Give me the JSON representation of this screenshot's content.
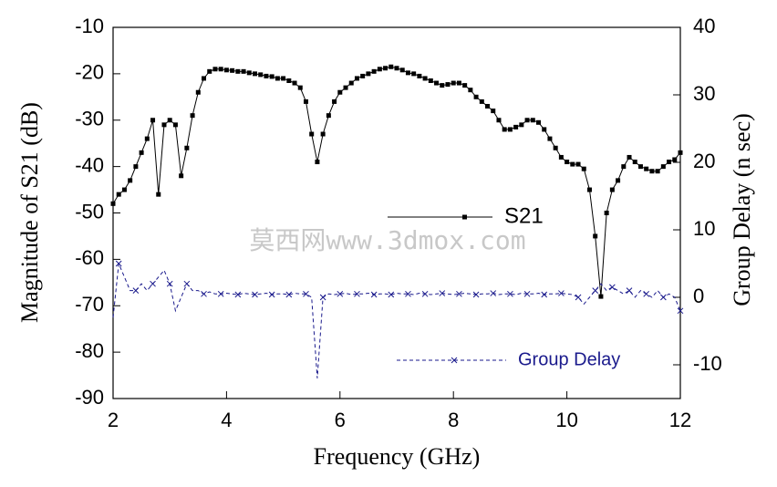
{
  "chart_data": {
    "type": "line",
    "x_label": "Frequency (GHz)",
    "y_label": "Magnitude of S21 (dB)",
    "y2_label": "Group Delay (n sec)",
    "annotation": "莫西网www.3dmox.com",
    "xlim": [
      2,
      12
    ],
    "xticks": [
      2,
      4,
      6,
      8,
      10,
      12
    ],
    "ylim": [
      -90,
      -10
    ],
    "yticks": [
      -90,
      -80,
      -70,
      -60,
      -50,
      -40,
      -30,
      -20,
      -10
    ],
    "y2lim": [
      -15,
      40
    ],
    "y2ticks": [
      -10,
      0,
      10,
      20,
      30,
      40
    ],
    "x": [
      2.0,
      2.1,
      2.2,
      2.3,
      2.4,
      2.5,
      2.6,
      2.7,
      2.8,
      2.9,
      3.0,
      3.1,
      3.2,
      3.3,
      3.4,
      3.5,
      3.6,
      3.7,
      3.8,
      3.9,
      4.0,
      4.1,
      4.2,
      4.3,
      4.4,
      4.5,
      4.6,
      4.7,
      4.8,
      4.9,
      5.0,
      5.1,
      5.2,
      5.3,
      5.4,
      5.5,
      5.6,
      5.7,
      5.8,
      5.9,
      6.0,
      6.1,
      6.2,
      6.3,
      6.4,
      6.5,
      6.6,
      6.7,
      6.8,
      6.9,
      7.0,
      7.1,
      7.2,
      7.3,
      7.4,
      7.5,
      7.6,
      7.7,
      7.8,
      7.9,
      8.0,
      8.1,
      8.2,
      8.3,
      8.4,
      8.5,
      8.6,
      8.7,
      8.8,
      8.9,
      9.0,
      9.1,
      9.2,
      9.3,
      9.4,
      9.5,
      9.6,
      9.7,
      9.8,
      9.9,
      10.0,
      10.1,
      10.2,
      10.3,
      10.4,
      10.5,
      10.6,
      10.7,
      10.8,
      10.9,
      11.0,
      11.1,
      11.2,
      11.3,
      11.4,
      11.5,
      11.6,
      11.7,
      11.8,
      11.9,
      12.0
    ],
    "series": [
      {
        "name": "S21",
        "color": "#000000",
        "marker": "square",
        "values": [
          -48,
          -46,
          -45,
          -43,
          -40,
          -37,
          -34,
          -30,
          -46,
          -31,
          -30,
          -31,
          -42,
          -36,
          -29,
          -24,
          -21,
          -19.5,
          -19,
          -19,
          -19.2,
          -19.3,
          -19.5,
          -19.5,
          -19.8,
          -20,
          -20.2,
          -20.5,
          -20.6,
          -21,
          -21,
          -21.5,
          -22,
          -23,
          -26,
          -33,
          -39,
          -33,
          -29,
          -26,
          -24,
          -23,
          -22,
          -21,
          -20.5,
          -20,
          -19.5,
          -19,
          -18.8,
          -18.5,
          -18.8,
          -19.2,
          -19.8,
          -20,
          -20.5,
          -21,
          -21.5,
          -22,
          -22.5,
          -22.3,
          -22,
          -22,
          -22.5,
          -23.5,
          -25,
          -26,
          -27,
          -28,
          -30,
          -32,
          -32,
          -31.5,
          -31,
          -30,
          -30,
          -30.5,
          -32,
          -34,
          -36,
          -38,
          -39,
          -39.5,
          -39.5,
          -40.5,
          -45,
          -55,
          -68,
          -50,
          -45,
          -43,
          -40,
          -38,
          -39,
          -40,
          -40.5,
          -41,
          -41,
          -40,
          -39,
          -38.5,
          -37
        ]
      },
      {
        "name": "Group Delay",
        "color": "#1a1a8c",
        "marker": "x",
        "axis": "y2",
        "values": [
          -3,
          5,
          3,
          1,
          1,
          2,
          1,
          2,
          3,
          4,
          2,
          -2,
          0,
          2,
          1,
          1,
          0.5,
          0.8,
          0.5,
          0.5,
          0.6,
          0.5,
          0.4,
          0.6,
          0.5,
          0.4,
          0.5,
          0.6,
          0.4,
          0.5,
          0.5,
          0.4,
          0.6,
          0.5,
          0.5,
          0,
          -12,
          0,
          0.5,
          0.4,
          0.5,
          0.6,
          0.4,
          0.5,
          0.5,
          0.6,
          0.4,
          0.5,
          0.5,
          0.4,
          0.6,
          0.5,
          0.5,
          0.4,
          0.6,
          0.5,
          0.4,
          0.5,
          0.6,
          0.5,
          0.4,
          0.5,
          0.6,
          0.5,
          0.4,
          0.5,
          0.5,
          0.6,
          0.4,
          0.5,
          0.5,
          0.4,
          0.6,
          0.5,
          0.5,
          0.6,
          0.4,
          0.5,
          0.5,
          0.6,
          0.5,
          0.4,
          0,
          -1,
          0,
          1,
          2,
          1,
          1.5,
          1,
          0.5,
          1,
          0,
          1,
          0.5,
          0,
          1,
          0,
          0.5,
          0,
          -2
        ]
      }
    ]
  }
}
